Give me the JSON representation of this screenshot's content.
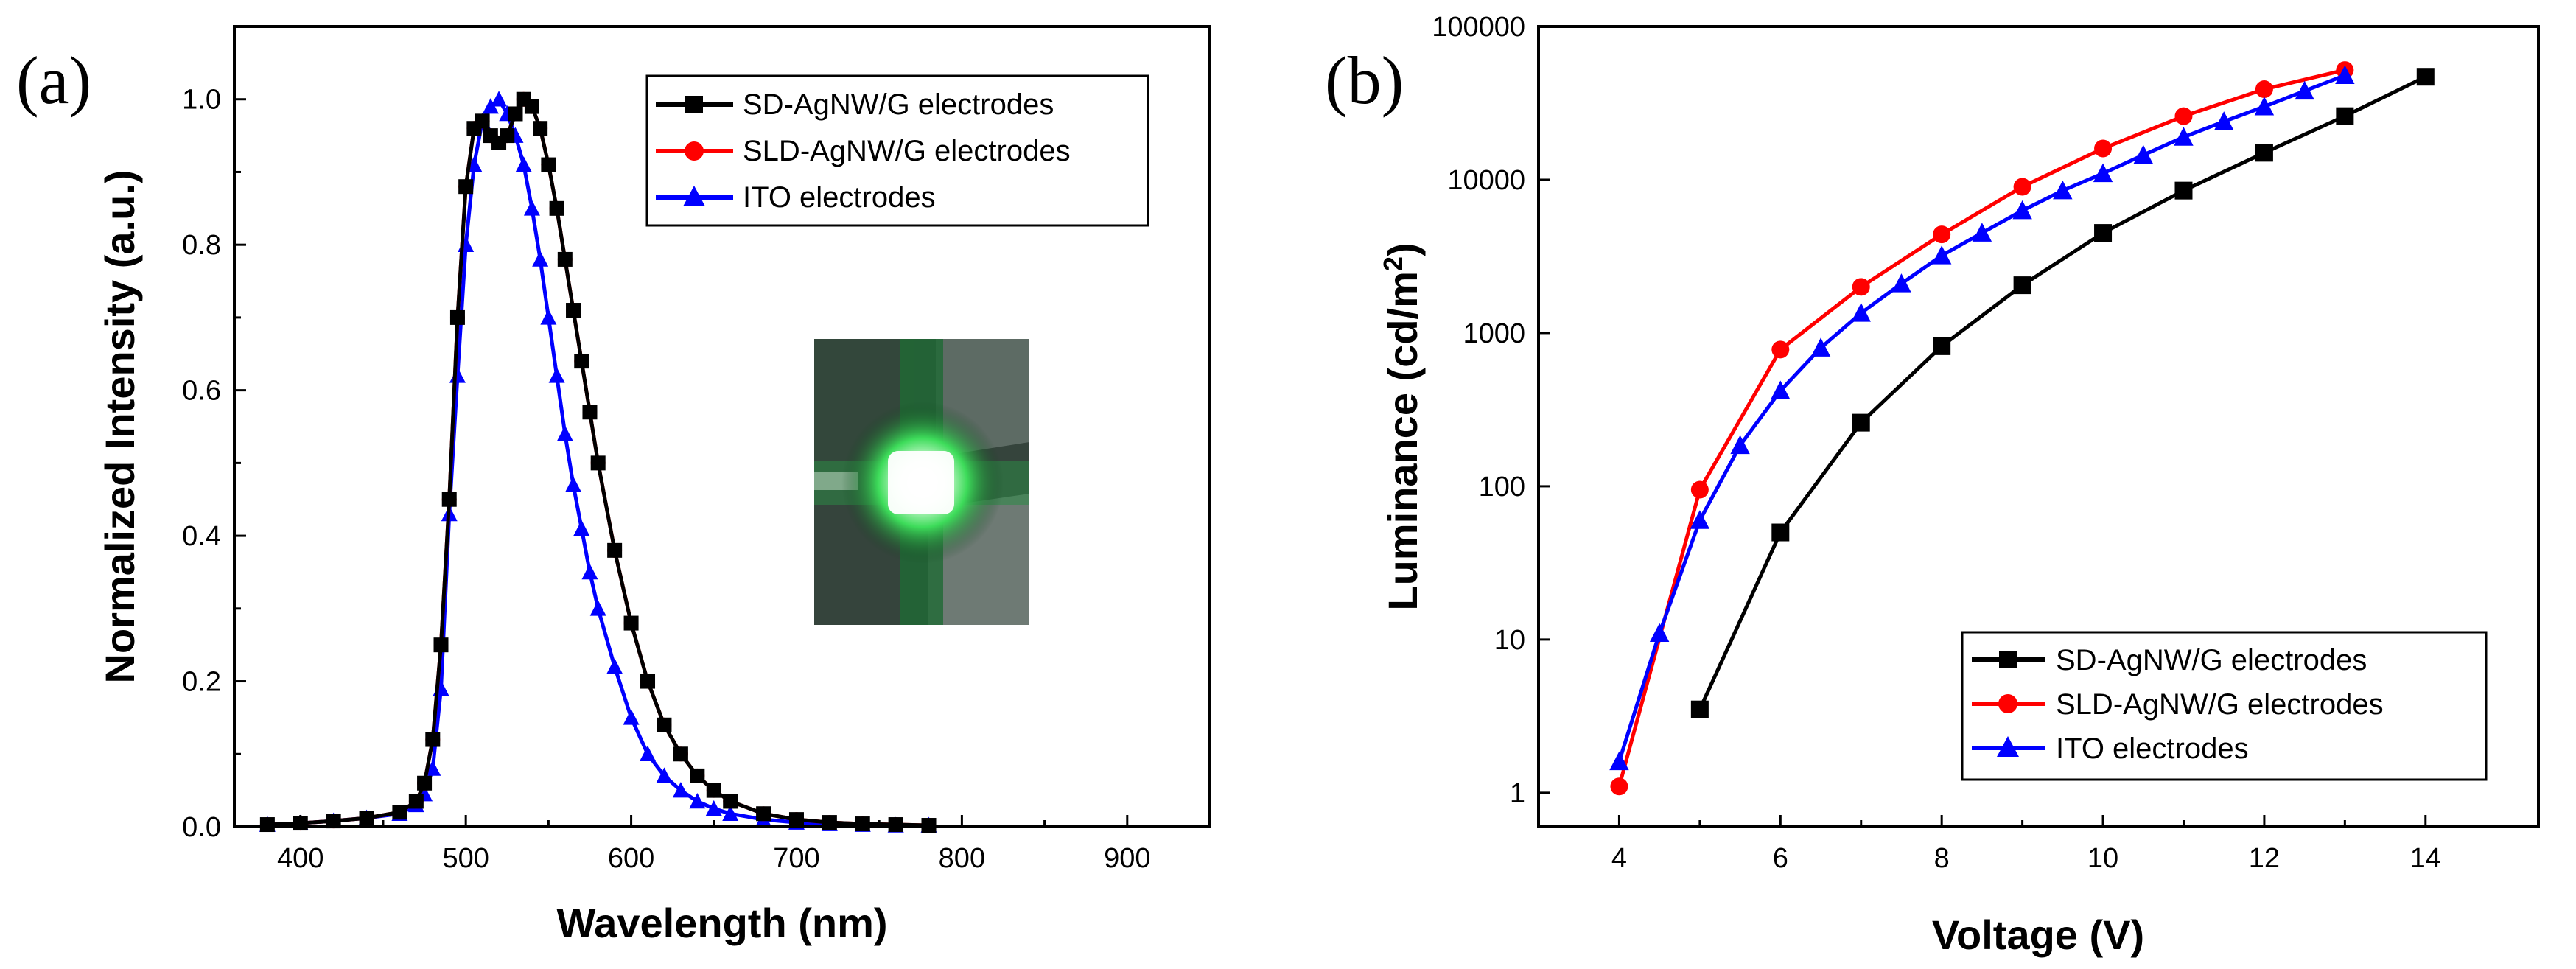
{
  "chart_data": [
    {
      "panel": "(a)",
      "type": "line",
      "title": "",
      "xlabel": "Wavelength (nm)",
      "ylabel": "Normalized Intensity (a.u.)",
      "xlim": [
        360,
        950
      ],
      "ylim": [
        0.0,
        1.1
      ],
      "xticks": [
        400,
        500,
        600,
        700,
        800,
        900
      ],
      "yticks": [
        0.0,
        0.2,
        0.4,
        0.6,
        0.8,
        1.0
      ],
      "xtick_labels": [
        "400",
        "500",
        "600",
        "700",
        "800",
        "900"
      ],
      "ytick_labels": [
        "0.0",
        "0.2",
        "0.4",
        "0.6",
        "0.8",
        "1.0"
      ],
      "grid": false,
      "legend_position": "top-right",
      "inset": "photo of glowing green OLED device",
      "series": [
        {
          "name": "SD-AgNW/G electrodes",
          "color": "#000000",
          "marker": "square",
          "x": [
            380,
            400,
            420,
            440,
            460,
            470,
            475,
            480,
            485,
            490,
            495,
            500,
            505,
            510,
            515,
            520,
            525,
            530,
            535,
            540,
            545,
            550,
            555,
            560,
            565,
            570,
            575,
            580,
            590,
            600,
            610,
            620,
            630,
            640,
            650,
            660,
            680,
            700,
            720,
            740,
            760,
            780
          ],
          "y": [
            0.003,
            0.005,
            0.008,
            0.012,
            0.02,
            0.035,
            0.06,
            0.12,
            0.25,
            0.45,
            0.7,
            0.88,
            0.96,
            0.97,
            0.95,
            0.94,
            0.95,
            0.98,
            1.0,
            0.99,
            0.96,
            0.91,
            0.85,
            0.78,
            0.71,
            0.64,
            0.57,
            0.5,
            0.38,
            0.28,
            0.2,
            0.14,
            0.1,
            0.07,
            0.05,
            0.035,
            0.018,
            0.01,
            0.006,
            0.004,
            0.003,
            0.002
          ]
        },
        {
          "name": "SLD-AgNW/G electrodes",
          "color": "#ff0000",
          "marker": "circle",
          "x": [
            380,
            400,
            420,
            440,
            460,
            470,
            475,
            480,
            485,
            490,
            495,
            500,
            505,
            510,
            515,
            520,
            525,
            530,
            535,
            540,
            545,
            550,
            555,
            560,
            565,
            570,
            575,
            580,
            590,
            600,
            610,
            620,
            630,
            640,
            650,
            660,
            680,
            700,
            720,
            740,
            760,
            780
          ],
          "y": [
            0.003,
            0.005,
            0.008,
            0.012,
            0.02,
            0.035,
            0.06,
            0.12,
            0.25,
            0.45,
            0.7,
            0.88,
            0.96,
            0.97,
            0.95,
            0.94,
            0.95,
            0.98,
            1.0,
            0.99,
            0.96,
            0.91,
            0.85,
            0.78,
            0.71,
            0.64,
            0.57,
            0.5,
            0.38,
            0.28,
            0.2,
            0.14,
            0.1,
            0.07,
            0.05,
            0.035,
            0.018,
            0.01,
            0.006,
            0.004,
            0.003,
            0.002
          ]
        },
        {
          "name": "ITO electrodes",
          "color": "#0000ff",
          "marker": "triangle",
          "x": [
            380,
            400,
            420,
            440,
            460,
            470,
            475,
            480,
            485,
            490,
            495,
            500,
            505,
            510,
            515,
            520,
            525,
            530,
            535,
            540,
            545,
            550,
            555,
            560,
            565,
            570,
            575,
            580,
            590,
            600,
            610,
            620,
            630,
            640,
            650,
            660,
            680,
            700,
            720,
            740,
            760,
            780
          ],
          "y": [
            0.003,
            0.005,
            0.008,
            0.012,
            0.018,
            0.03,
            0.045,
            0.08,
            0.19,
            0.43,
            0.62,
            0.8,
            0.91,
            0.97,
            0.99,
            1.0,
            0.98,
            0.95,
            0.91,
            0.85,
            0.78,
            0.7,
            0.62,
            0.54,
            0.47,
            0.41,
            0.35,
            0.3,
            0.22,
            0.15,
            0.1,
            0.07,
            0.05,
            0.035,
            0.025,
            0.018,
            0.01,
            0.006,
            0.004,
            0.003,
            0.002,
            0.002
          ]
        }
      ]
    },
    {
      "panel": "(b)",
      "type": "line",
      "title": "",
      "xlabel": "Voltage (V)",
      "ylabel_main": "Luminance (cd/m",
      "ylabel_sup": "2",
      "ylabel_close": ")",
      "xlim": [
        3,
        15.4
      ],
      "ylim": [
        0.6,
        100000
      ],
      "yscale": "log",
      "xticks": [
        4,
        6,
        8,
        10,
        12,
        14
      ],
      "yticks": [
        1,
        10,
        100,
        1000,
        10000,
        100000
      ],
      "xtick_labels": [
        "4",
        "6",
        "8",
        "10",
        "12",
        "14"
      ],
      "ytick_labels": [
        "1",
        "10",
        "100",
        "1000",
        "10000",
        "100000"
      ],
      "grid": false,
      "legend_position": "bottom-right",
      "series": [
        {
          "name": "SD-AgNW/G electrodes",
          "color": "#000000",
          "marker": "square",
          "x": [
            5,
            6,
            7,
            8,
            9,
            10,
            11,
            12,
            13,
            14
          ],
          "y": [
            3.5,
            50,
            260,
            820,
            2050,
            4500,
            8500,
            15000,
            26000,
            47000
          ]
        },
        {
          "name": "SLD-AgNW/G electrodes",
          "color": "#ff0000",
          "marker": "circle",
          "x": [
            4,
            5,
            6,
            7,
            8,
            9,
            10,
            11,
            12,
            13
          ],
          "y": [
            1.1,
            95,
            780,
            2000,
            4400,
            9000,
            16000,
            26000,
            39000,
            52000
          ]
        },
        {
          "name": "ITO electrodes",
          "color": "#0000ff",
          "marker": "triangle",
          "x": [
            4,
            4.5,
            5,
            5.5,
            6,
            6.5,
            7,
            7.5,
            8,
            8.5,
            9,
            9.5,
            10,
            10.5,
            11,
            11.5,
            12,
            12.5,
            13
          ],
          "y": [
            1.6,
            11,
            60,
            185,
            420,
            800,
            1350,
            2100,
            3200,
            4500,
            6300,
            8500,
            11000,
            14500,
            19000,
            24000,
            30000,
            38000,
            48000
          ]
        }
      ]
    }
  ]
}
